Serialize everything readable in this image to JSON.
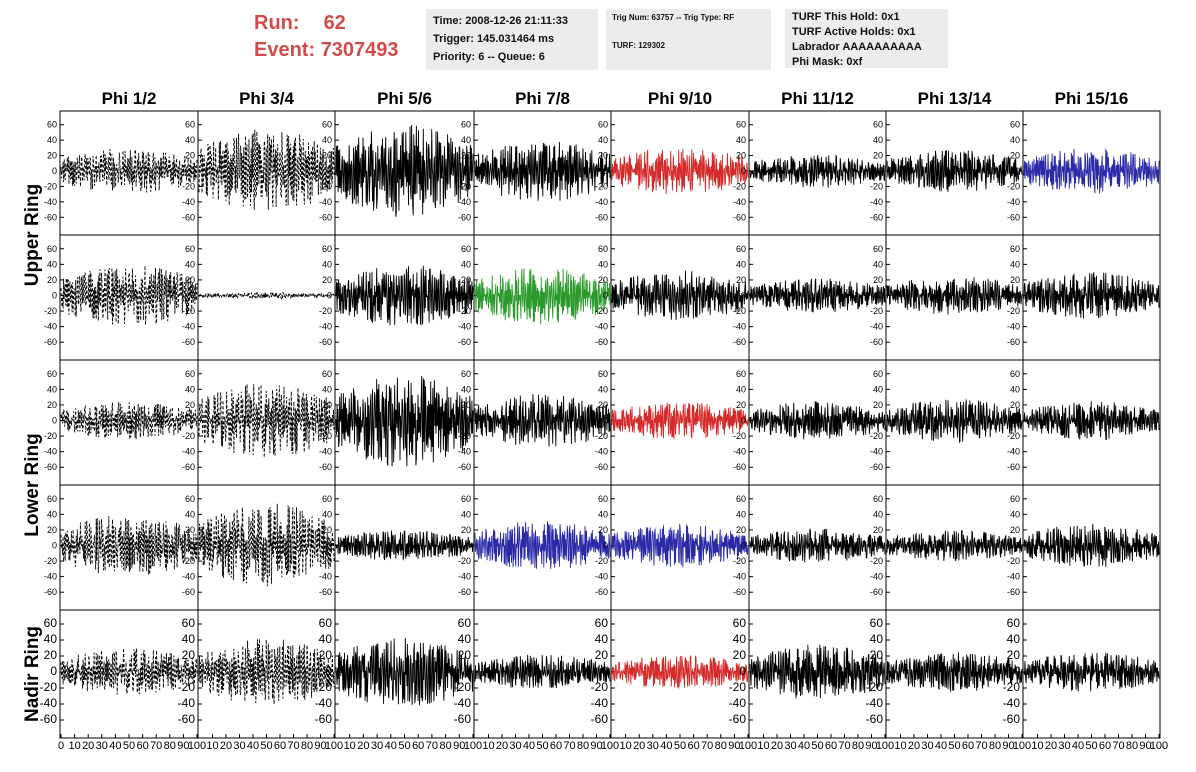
{
  "header": {
    "run_label": "Run:",
    "run_value": "62",
    "event_label": "Event:",
    "event_value": "7307493",
    "time": "Time: 2008-12-26 21:11:33",
    "trigger": "Trigger: 145.031464 ms",
    "priority": "Priority: 6 -- Queue: 6",
    "trig_num": "Trig Num: 63757 -- Trig Type: RF",
    "turf": "TURF: 129302",
    "turf_this_hold": "TURF This Hold: 0x1",
    "turf_active_holds": "TURF Active Holds: 0x1",
    "labrador": "Labrador AAAAAAAAAA",
    "phi_mask": "Phi Mask: 0xf"
  },
  "colors": {
    "red": "#d42a2a",
    "green": "#2a9a2a",
    "blue": "#2a2aa8",
    "black": "#000000",
    "header_red": "#d24b4b"
  },
  "chart_data": {
    "type": "line",
    "title": "",
    "columns": [
      "Phi 1/2",
      "Phi 3/4",
      "Phi 5/6",
      "Phi 7/8",
      "Phi 9/10",
      "Phi 11/12",
      "Phi 13/14",
      "Phi 15/16"
    ],
    "rows": [
      "Upper Ring",
      "Upper Ring",
      "Lower Ring",
      "Lower Ring",
      "Nadir Ring"
    ],
    "row_labels": [
      "Upper Ring",
      "Lower Ring",
      "Nadir Ring"
    ],
    "xlim": [
      0,
      100
    ],
    "ylim": [
      -70,
      70
    ],
    "y_ticks": [
      -60,
      -40,
      -20,
      0,
      20,
      40,
      60
    ],
    "x_ticks": [
      0,
      10,
      20,
      30,
      40,
      50,
      60,
      70,
      80,
      90,
      100
    ],
    "x_ticks_first_panel": [
      "0",
      "10",
      "20",
      "30",
      "40",
      "50",
      "60",
      "70",
      "80",
      "90",
      "100"
    ],
    "x_ticks_other_panels": [
      "10",
      "20",
      "30",
      "40",
      "50",
      "60",
      "70",
      "80",
      "90",
      "100"
    ],
    "grid": false,
    "panels": [
      [
        {
          "style": "dashed",
          "color": "black",
          "amplitude": 30
        },
        {
          "style": "dashed",
          "color": "black",
          "amplitude": 55
        },
        {
          "style": "solid",
          "color": "black",
          "amplitude": 60
        },
        {
          "style": "solid",
          "color": "black",
          "amplitude": 40
        },
        {
          "style": "solid",
          "color": "red",
          "amplitude": 32
        },
        {
          "style": "solid",
          "color": "black",
          "amplitude": 22
        },
        {
          "style": "solid",
          "color": "black",
          "amplitude": 28
        },
        {
          "style": "solid",
          "color": "blue",
          "amplitude": 30
        }
      ],
      [
        {
          "style": "dashed",
          "color": "black",
          "amplitude": 40
        },
        {
          "style": "dashed",
          "color": "black",
          "amplitude": 4
        },
        {
          "style": "solid",
          "color": "black",
          "amplitude": 40
        },
        {
          "style": "solid",
          "color": "green",
          "amplitude": 38
        },
        {
          "style": "solid",
          "color": "black",
          "amplitude": 32
        },
        {
          "style": "solid",
          "color": "black",
          "amplitude": 22
        },
        {
          "style": "solid",
          "color": "black",
          "amplitude": 25
        },
        {
          "style": "solid",
          "color": "black",
          "amplitude": 30
        }
      ],
      [
        {
          "style": "dashed",
          "color": "black",
          "amplitude": 25
        },
        {
          "style": "dashed",
          "color": "black",
          "amplitude": 50
        },
        {
          "style": "solid",
          "color": "black",
          "amplitude": 60
        },
        {
          "style": "solid",
          "color": "black",
          "amplitude": 35
        },
        {
          "style": "solid",
          "color": "red",
          "amplitude": 25
        },
        {
          "style": "solid",
          "color": "black",
          "amplitude": 25
        },
        {
          "style": "solid",
          "color": "black",
          "amplitude": 28
        },
        {
          "style": "solid",
          "color": "black",
          "amplitude": 25
        }
      ],
      [
        {
          "style": "dashed",
          "color": "black",
          "amplitude": 40
        },
        {
          "style": "dashed",
          "color": "black",
          "amplitude": 55
        },
        {
          "style": "solid",
          "color": "black",
          "amplitude": 20
        },
        {
          "style": "solid",
          "color": "blue",
          "amplitude": 32
        },
        {
          "style": "solid",
          "color": "blue",
          "amplitude": 28
        },
        {
          "style": "solid",
          "color": "black",
          "amplitude": 22
        },
        {
          "style": "solid",
          "color": "black",
          "amplitude": 20
        },
        {
          "style": "solid",
          "color": "black",
          "amplitude": 28
        }
      ],
      [
        {
          "style": "dashed",
          "color": "black",
          "amplitude": 30
        },
        {
          "style": "dashed",
          "color": "black",
          "amplitude": 42
        },
        {
          "style": "solid",
          "color": "black",
          "amplitude": 45
        },
        {
          "style": "solid",
          "color": "black",
          "amplitude": 22
        },
        {
          "style": "solid",
          "color": "red",
          "amplitude": 22
        },
        {
          "style": "solid",
          "color": "black",
          "amplitude": 35
        },
        {
          "style": "solid",
          "color": "black",
          "amplitude": 25
        },
        {
          "style": "solid",
          "color": "black",
          "amplitude": 25
        }
      ]
    ]
  }
}
